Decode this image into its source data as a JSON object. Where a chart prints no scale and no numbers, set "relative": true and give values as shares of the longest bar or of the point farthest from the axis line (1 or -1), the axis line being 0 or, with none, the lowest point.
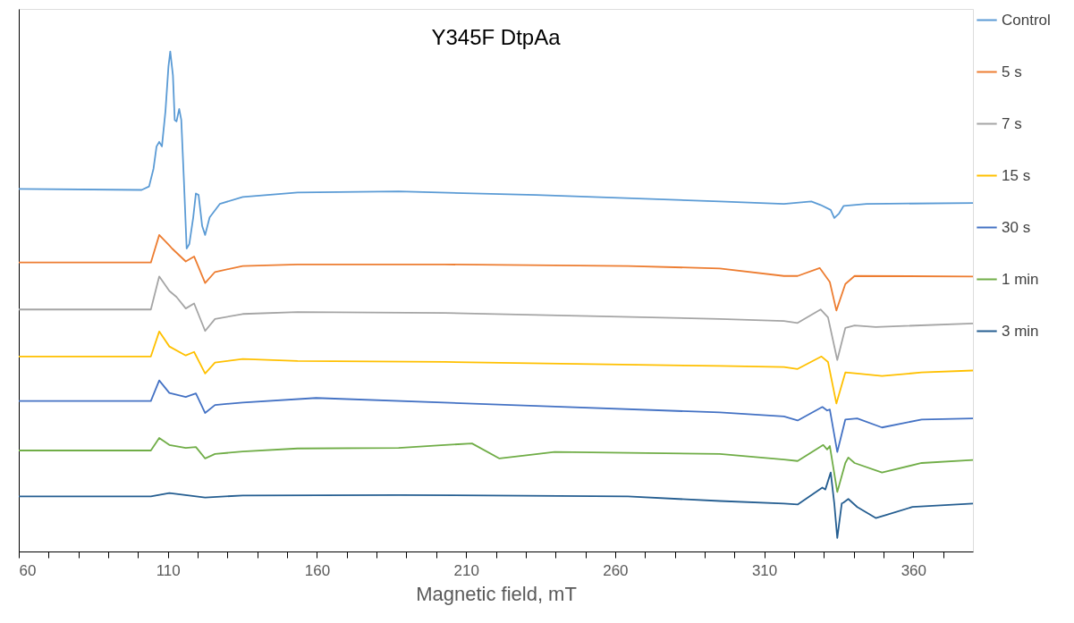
{
  "chart_data": {
    "type": "line",
    "title": "Y345F DtpAa",
    "xlabel": "Magnetic field, mT",
    "relative": true,
    "xlim": [
      60,
      380
    ],
    "xticks": [
      60,
      {
        "value": 70,
        "label": null
      },
      {
        "value": 80,
        "label": null
      },
      {
        "value": 90,
        "label": null
      },
      {
        "value": 100,
        "label": null
      },
      110,
      {
        "value": 120,
        "label": null
      },
      {
        "value": 130,
        "label": null
      },
      {
        "value": 140,
        "label": null
      },
      {
        "value": 150,
        "label": null
      },
      160,
      {
        "value": 170,
        "label": null
      },
      {
        "value": 180,
        "label": null
      },
      {
        "value": 190,
        "label": null
      },
      {
        "value": 200,
        "label": null
      },
      210,
      {
        "value": 220,
        "label": null
      },
      {
        "value": 230,
        "label": null
      },
      {
        "value": 240,
        "label": null
      },
      {
        "value": 250,
        "label": null
      },
      260,
      {
        "value": 270,
        "label": null
      },
      {
        "value": 280,
        "label": null
      },
      {
        "value": 290,
        "label": null
      },
      {
        "value": 300,
        "label": null
      },
      310,
      {
        "value": 320,
        "label": null
      },
      {
        "value": 330,
        "label": null
      },
      {
        "value": 340,
        "label": null
      },
      {
        "value": 350,
        "label": null
      },
      360,
      {
        "value": 370,
        "label": null
      }
    ],
    "tick_labels": "x",
    "grid": false,
    "legend": "right",
    "marker": "none",
    "line_style": "solid",
    "series": [
      {
        "name": "Control",
        "color": "#5b9bd5",
        "x": [
          60,
          101.2,
          103.7,
          105.2,
          106.2,
          107.1,
          108,
          109.2,
          110.2,
          110.8,
          111.7,
          112.3,
          112.9,
          113.8,
          114.5,
          115.4,
          116.3,
          117.2,
          118.5,
          119.4,
          120.3,
          121.5,
          122.5,
          124,
          127.4,
          135.1,
          153.5,
          187.4,
          233.5,
          295.1,
          316.6,
          325.8,
          328.9,
          332.3,
          333.5,
          335.1,
          336.6,
          344.3,
          380
        ],
        "values": [
          0.725,
          0.723,
          0.73,
          0.766,
          0.81,
          0.819,
          0.81,
          0.881,
          0.97,
          1,
          0.952,
          0.863,
          0.86,
          0.885,
          0.863,
          0.739,
          0.606,
          0.615,
          0.668,
          0.716,
          0.713,
          0.651,
          0.633,
          0.668,
          0.695,
          0.709,
          0.718,
          0.72,
          0.713,
          0.7,
          0.695,
          0.7,
          0.693,
          0.683,
          0.667,
          0.676,
          0.691,
          0.695,
          0.697
        ]
      },
      {
        "name": "5 s",
        "color": "#ed7d31",
        "x": [
          60,
          104.3,
          107.1,
          110.5,
          111.4,
          116,
          118.8,
          122.5,
          125.8,
          135.1,
          153.5,
          202.8,
          264.3,
          295.1,
          316.6,
          321.2,
          328.6,
          332,
          334.2,
          337.2,
          340.3,
          380
        ],
        "values": [
          0.578,
          0.578,
          0.633,
          0.612,
          0.606,
          0.58,
          0.59,
          0.537,
          0.559,
          0.571,
          0.574,
          0.574,
          0.571,
          0.566,
          0.551,
          0.551,
          0.567,
          0.539,
          0.482,
          0.535,
          0.551,
          0.55
        ]
      },
      {
        "name": "7 s",
        "color": "#a5a5a5",
        "x": [
          60,
          104.3,
          107.1,
          110.5,
          112.9,
          116,
          118.8,
          122.5,
          125.8,
          135.1,
          153.5,
          202.8,
          295.1,
          316.6,
          321.2,
          328.9,
          331.4,
          334.5,
          337.2,
          340.3,
          347.4,
          380
        ],
        "values": [
          0.484,
          0.484,
          0.55,
          0.521,
          0.509,
          0.486,
          0.496,
          0.441,
          0.465,
          0.475,
          0.479,
          0.477,
          0.465,
          0.461,
          0.457,
          0.484,
          0.468,
          0.383,
          0.447,
          0.452,
          0.449,
          0.456
        ]
      },
      {
        "name": "15 s",
        "color": "#ffc000",
        "x": [
          60,
          104.3,
          107.1,
          110.5,
          116,
          118.8,
          122.5,
          125.8,
          135.1,
          153.5,
          202.8,
          295.1,
          316.6,
          321.2,
          329.2,
          331.4,
          334.2,
          337.2,
          341.2,
          349.5,
          362.8,
          380
        ],
        "values": [
          0.39,
          0.39,
          0.44,
          0.41,
          0.392,
          0.399,
          0.356,
          0.378,
          0.385,
          0.381,
          0.379,
          0.371,
          0.369,
          0.365,
          0.39,
          0.379,
          0.296,
          0.358,
          0.356,
          0.351,
          0.358,
          0.362
        ]
      },
      {
        "name": "30 s",
        "color": "#4472c4",
        "x": [
          60,
          104.3,
          107.1,
          110.5,
          116,
          119.4,
          122.5,
          125.8,
          135.1,
          159.7,
          233.5,
          295.1,
          316.6,
          321.2,
          329.5,
          331.1,
          332,
          334.5,
          337.2,
          341.2,
          349.5,
          362.8,
          380
        ],
        "values": [
          0.301,
          0.301,
          0.342,
          0.317,
          0.309,
          0.316,
          0.277,
          0.293,
          0.298,
          0.307,
          0.291,
          0.278,
          0.27,
          0.262,
          0.289,
          0.282,
          0.284,
          0.199,
          0.264,
          0.266,
          0.248,
          0.264,
          0.266
        ]
      },
      {
        "name": "1 min",
        "color": "#70ad47",
        "x": [
          60,
          104.3,
          107.1,
          110.5,
          116,
          119.4,
          122.5,
          125.8,
          135.1,
          153.5,
          187.4,
          202.8,
          212,
          221.2,
          239.7,
          295.1,
          316.6,
          321.2,
          329.8,
          331.1,
          332,
          334.5,
          337.2,
          338.2,
          340.3,
          349.5,
          362.8,
          380
        ],
        "values": [
          0.202,
          0.202,
          0.227,
          0.213,
          0.207,
          0.209,
          0.186,
          0.195,
          0.2,
          0.206,
          0.207,
          0.213,
          0.216,
          0.186,
          0.199,
          0.195,
          0.184,
          0.181,
          0.213,
          0.204,
          0.211,
          0.119,
          0.177,
          0.188,
          0.177,
          0.158,
          0.177,
          0.183
        ]
      },
      {
        "name": "3 min",
        "color": "#255e91",
        "x": [
          60,
          104.3,
          110.5,
          122.5,
          135.1,
          187.4,
          264.3,
          295.1,
          316.6,
          321.2,
          329.5,
          330.5,
          332.3,
          333.5,
          334.5,
          336,
          336.6,
          338.2,
          341.2,
          347.4,
          351.4,
          359.7,
          380
        ],
        "values": [
          0.11,
          0.11,
          0.117,
          0.108,
          0.112,
          0.113,
          0.11,
          0.101,
          0.096,
          0.094,
          0.128,
          0.124,
          0.158,
          0.096,
          0.027,
          0.096,
          0.098,
          0.105,
          0.089,
          0.067,
          0.074,
          0.089,
          0.096
        ]
      }
    ]
  }
}
